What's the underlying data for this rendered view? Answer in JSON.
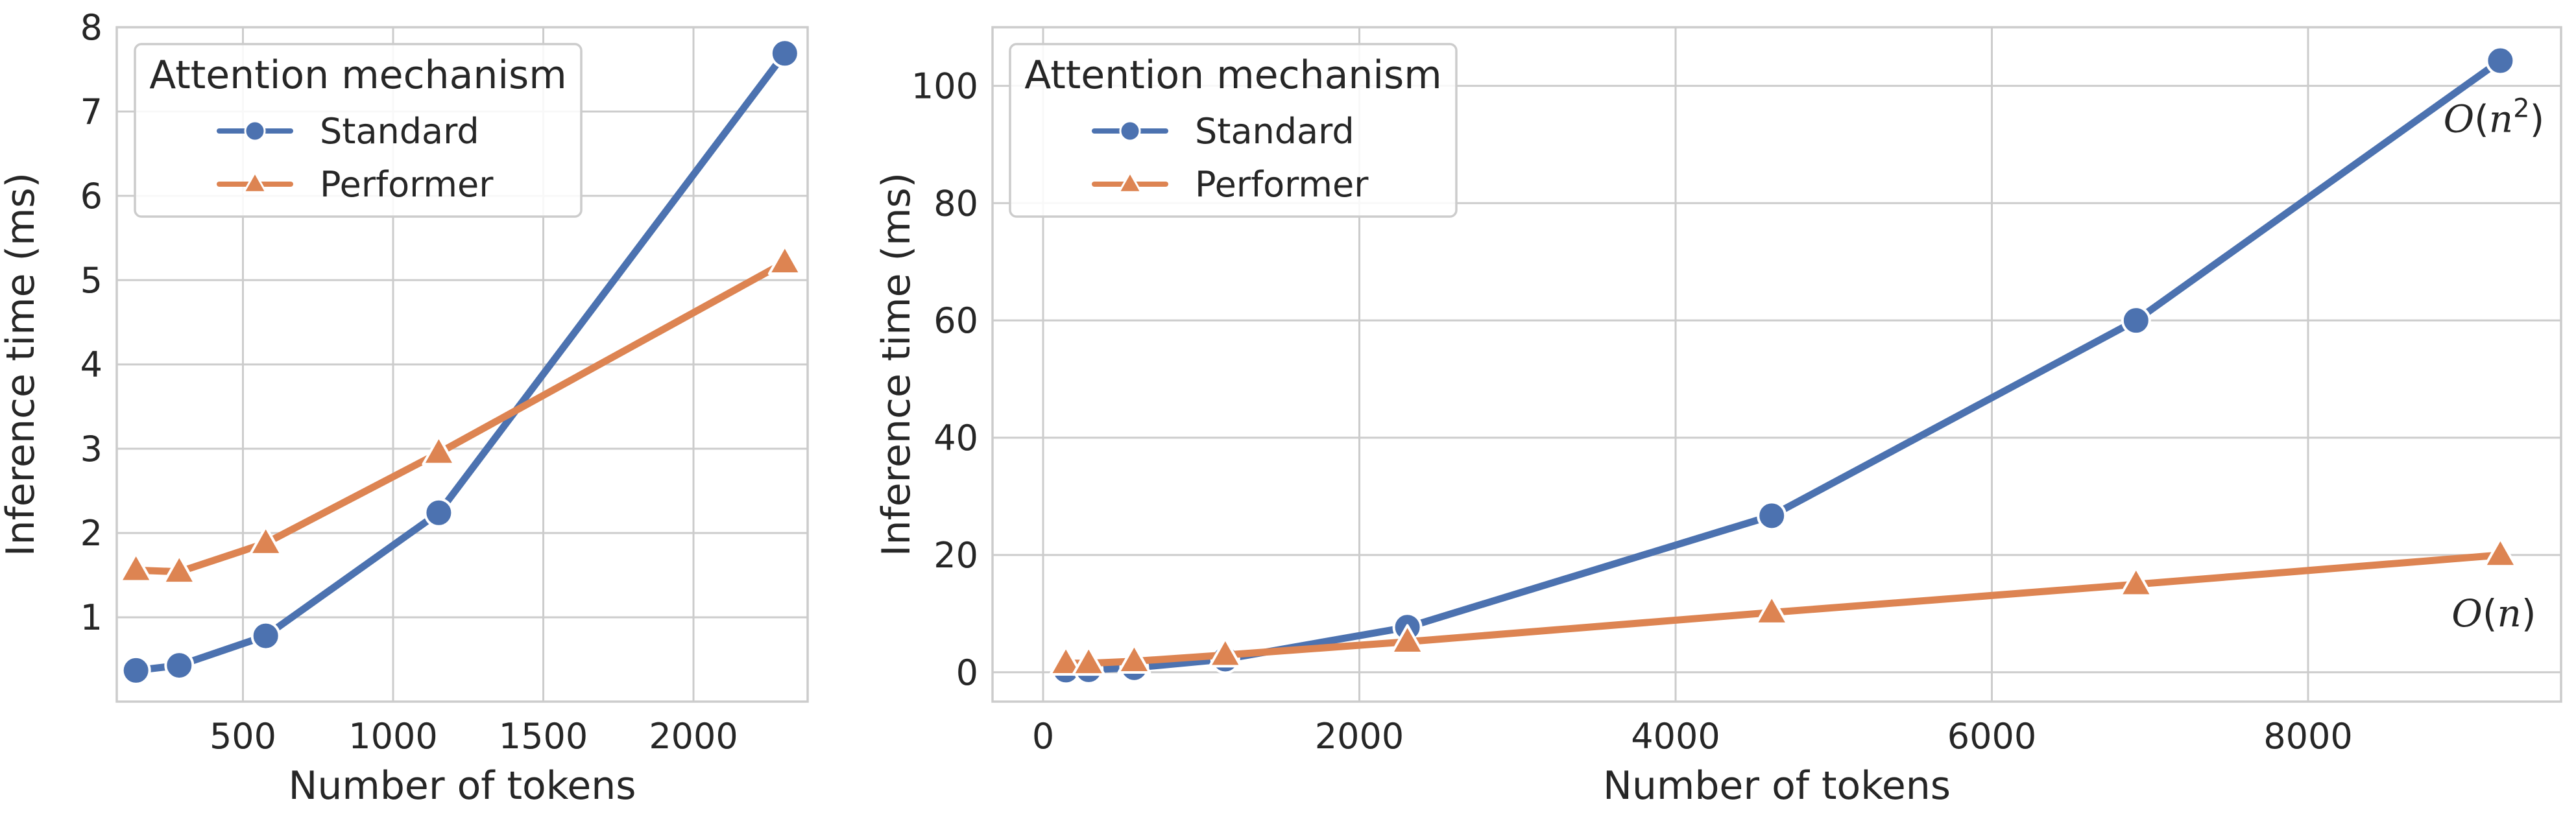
{
  "chart_data": [
    {
      "type": "line",
      "xlabel": "Number of tokens",
      "ylabel": "Inference time (ms)",
      "xlim": [
        80,
        2380
      ],
      "ylim": [
        0,
        8
      ],
      "xticks": [
        500,
        1000,
        1500,
        2000
      ],
      "yticks": [
        1,
        2,
        3,
        4,
        5,
        6,
        7,
        8
      ],
      "grid": true,
      "legend": {
        "title": "Attention mechanism",
        "placement": "top-left",
        "entries": [
          "Standard",
          "Performer"
        ]
      },
      "series": [
        {
          "name": "Standard",
          "color": "#4c72b0",
          "marker": "circle",
          "x": [
            144,
            288,
            576,
            1152,
            2304
          ],
          "y": [
            0.37,
            0.43,
            0.78,
            2.24,
            7.69
          ]
        },
        {
          "name": "Performer",
          "color": "#dd8452",
          "marker": "triangle",
          "x": [
            144,
            288,
            576,
            1152,
            2304
          ],
          "y": [
            1.56,
            1.54,
            1.88,
            2.95,
            5.21
          ]
        }
      ],
      "annotations": []
    },
    {
      "type": "line",
      "xlabel": "Number of tokens",
      "ylabel": "Inference time (ms)",
      "xlim": [
        -320,
        9600
      ],
      "ylim": [
        -5,
        110
      ],
      "xticks": [
        0,
        2000,
        4000,
        6000,
        8000
      ],
      "yticks": [
        0,
        20,
        40,
        60,
        80,
        100
      ],
      "grid": true,
      "legend": {
        "title": "Attention mechanism",
        "placement": "top-left",
        "entries": [
          "Standard",
          "Performer"
        ]
      },
      "series": [
        {
          "name": "Standard",
          "color": "#4c72b0",
          "marker": "circle",
          "x": [
            144,
            288,
            576,
            1152,
            2304,
            4608,
            6912,
            9216
          ],
          "y": [
            0.37,
            0.43,
            0.78,
            2.24,
            7.69,
            26.7,
            60.0,
            104.3
          ]
        },
        {
          "name": "Performer",
          "color": "#dd8452",
          "marker": "triangle",
          "x": [
            144,
            288,
            576,
            1152,
            2304,
            4608,
            6912,
            9216
          ],
          "y": [
            1.56,
            1.54,
            1.88,
            2.95,
            5.21,
            10.2,
            15.0,
            20.0
          ]
        }
      ],
      "annotations": [
        {
          "main": "O",
          "open": "(",
          "var": "n",
          "sup": "2",
          "close": ")",
          "x": 9216,
          "y": 104.3,
          "dx": -10,
          "dy": 110
        },
        {
          "main": "O",
          "open": "(",
          "var": "n",
          "sup": "",
          "close": ")",
          "x": 9216,
          "y": 20.0,
          "dx": -10,
          "dy": 110
        }
      ]
    }
  ]
}
